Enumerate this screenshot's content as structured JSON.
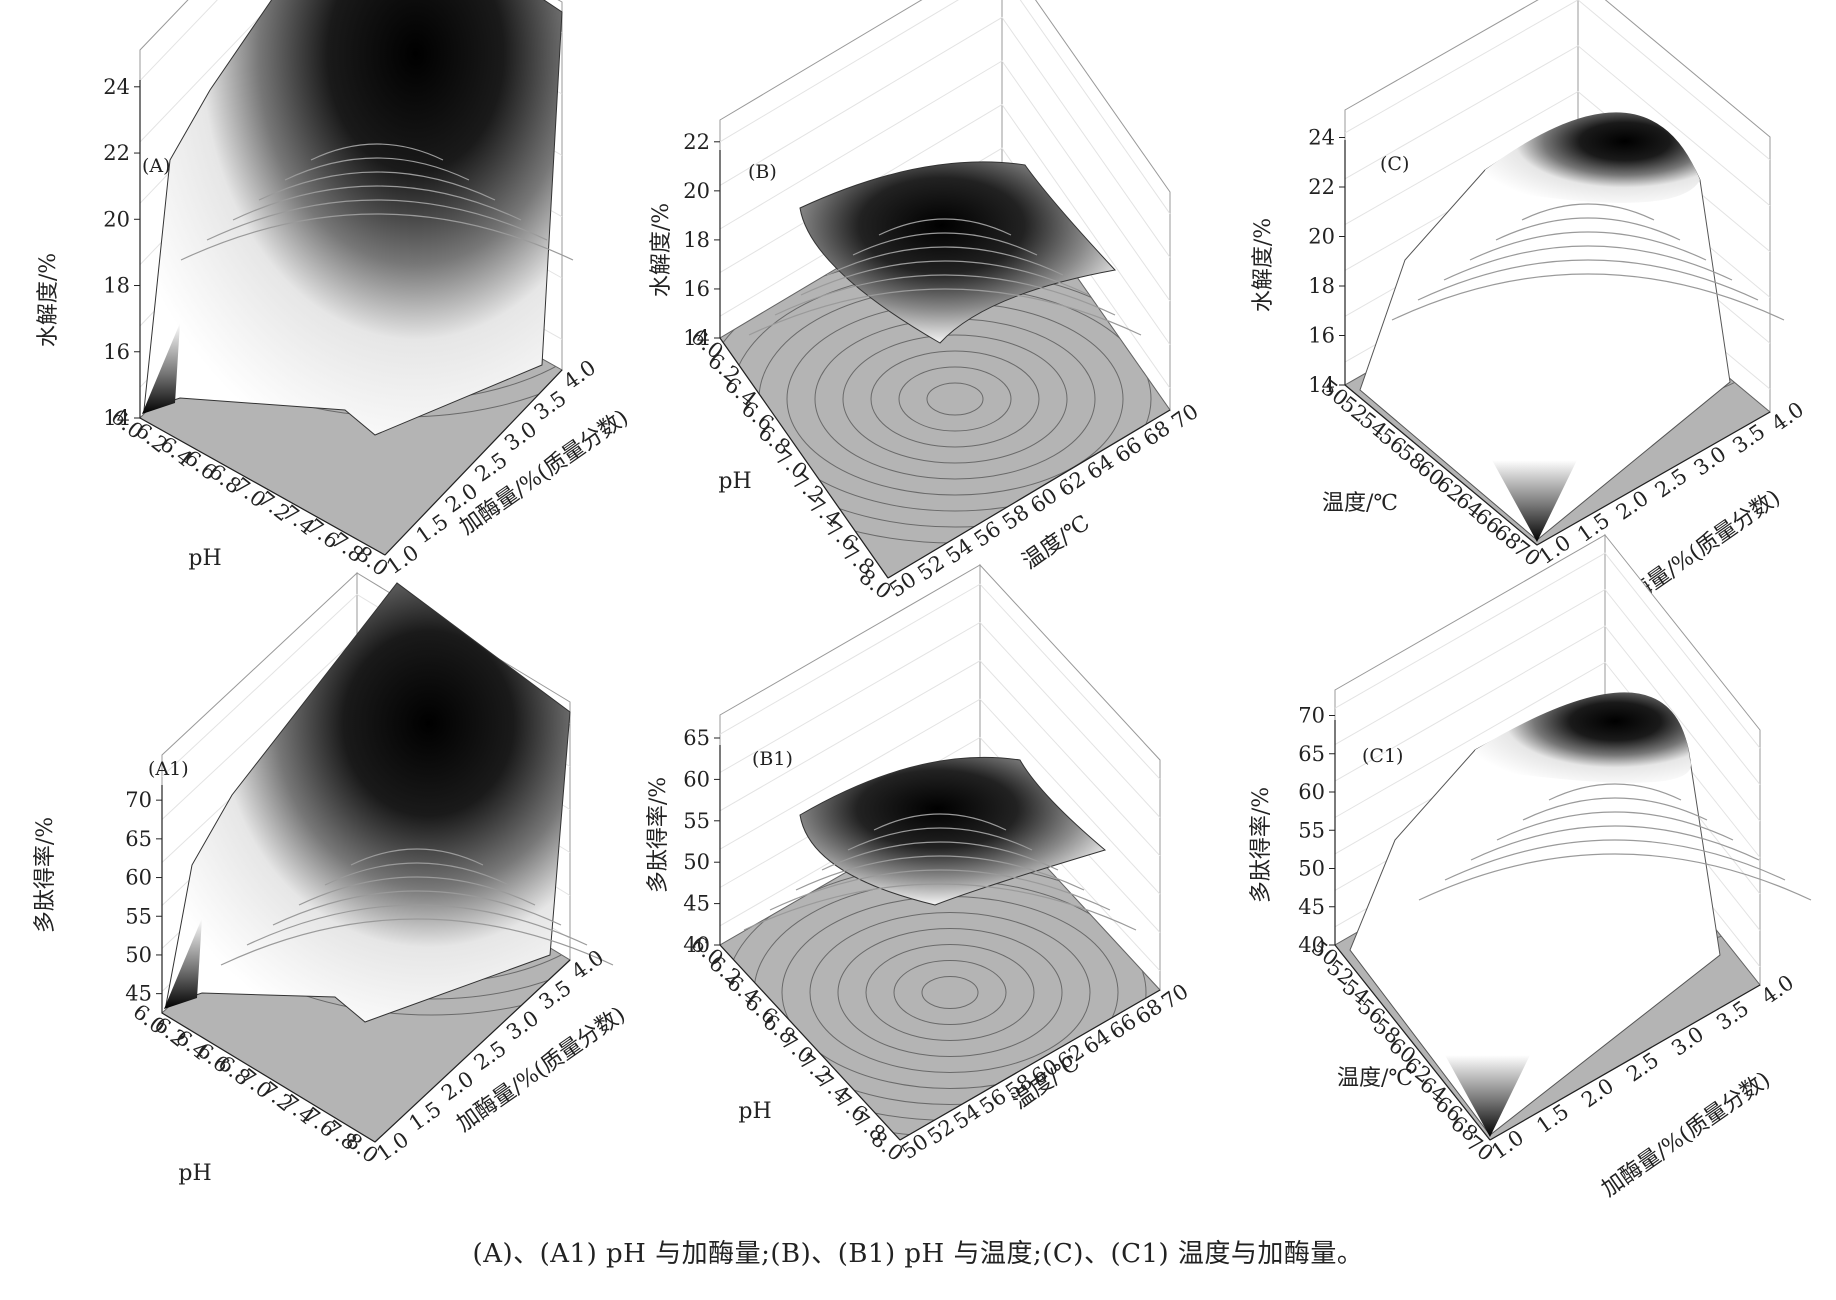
{
  "caption": "(A)、(A1) pH 与加酶量;(B)、(B1) pH 与温度;(C)、(C1) 温度与加酶量。",
  "chart_data": [
    {
      "type": "surface3d",
      "panel": "(A)",
      "x": {
        "label": "pH",
        "ticks": [
          "6.0",
          "6.2",
          "6.4",
          "6.6",
          "6.8",
          "7.0",
          "7.2",
          "7.4",
          "7.6",
          "7.8",
          "8.0"
        ],
        "range": [
          6.0,
          8.0
        ]
      },
      "y": {
        "label": "加酶量/%(质量分数)",
        "ticks": [
          "1.0",
          "1.5",
          "2.0",
          "2.5",
          "3.0",
          "3.5",
          "4.0"
        ],
        "range": [
          1.0,
          4.0
        ]
      },
      "z": {
        "label": "水解度/%",
        "ticks": [
          "14",
          "16",
          "18",
          "20",
          "22",
          "24"
        ],
        "range": [
          14,
          24
        ]
      },
      "peak": {
        "x": 6.6,
        "y": 4.0,
        "z": 24.5
      }
    },
    {
      "type": "surface3d",
      "panel": "(B)",
      "x": {
        "label": "pH",
        "ticks": [
          "6.0",
          "6.2",
          "6.4",
          "6.6",
          "6.8",
          "7.0",
          "7.2",
          "7.4",
          "7.6",
          "7.8",
          "8.0"
        ],
        "range": [
          6.0,
          8.0
        ]
      },
      "y": {
        "label": "温度/℃",
        "ticks": [
          "50",
          "52",
          "54",
          "56",
          "58",
          "60",
          "62",
          "64",
          "66",
          "68",
          "70"
        ],
        "range": [
          50,
          70
        ]
      },
      "z": {
        "label": "水解度/%",
        "ticks": [
          "14",
          "16",
          "18",
          "20",
          "22"
        ],
        "range": [
          14,
          22
        ]
      },
      "peak": {
        "x": 6.8,
        "y": 60,
        "z": 22
      }
    },
    {
      "type": "surface3d",
      "panel": "(C)",
      "x": {
        "label": "温度/℃",
        "ticks": [
          "50",
          "52",
          "54",
          "56",
          "58",
          "60",
          "62",
          "64",
          "66",
          "68",
          "70"
        ],
        "range": [
          50,
          70
        ]
      },
      "y": {
        "label": "加酶量/%(质量分数)",
        "ticks": [
          "1.0",
          "1.5",
          "2.0",
          "2.5",
          "3.0",
          "3.5",
          "4.0"
        ],
        "range": [
          1.0,
          4.0
        ]
      },
      "z": {
        "label": "水解度/%",
        "ticks": [
          "14",
          "16",
          "18",
          "20",
          "22",
          "24"
        ],
        "range": [
          14,
          24
        ]
      },
      "peak": {
        "x": 60,
        "y": 4.0,
        "z": 24.5
      }
    },
    {
      "type": "surface3d",
      "panel": "(A1)",
      "x": {
        "label": "pH",
        "ticks": [
          "6.0",
          "6.2",
          "6.4",
          "6.6",
          "6.8",
          "7.0",
          "7.2",
          "7.4",
          "7.6",
          "7.8",
          "8.0"
        ],
        "range": [
          6.0,
          8.0
        ]
      },
      "y": {
        "label": "加酶量/%(质量分数)",
        "ticks": [
          "1.0",
          "1.5",
          "2.0",
          "2.5",
          "3.0",
          "3.5",
          "4.0"
        ],
        "range": [
          1.0,
          4.0
        ]
      },
      "z": {
        "label": "多肽得率/%",
        "ticks": [
          "45",
          "50",
          "55",
          "60",
          "65",
          "70"
        ],
        "range": [
          42,
          70
        ]
      },
      "peak": {
        "x": 6.6,
        "y": 4.0,
        "z": 70
      }
    },
    {
      "type": "surface3d",
      "panel": "(B1)",
      "x": {
        "label": "pH",
        "ticks": [
          "6.0",
          "6.2",
          "6.4",
          "6.6",
          "6.8",
          "7.0",
          "7.2",
          "7.4",
          "7.6",
          "7.8",
          "8.0"
        ],
        "range": [
          6.0,
          8.0
        ]
      },
      "y": {
        "label": "温度/℃",
        "ticks": [
          "50",
          "52",
          "54",
          "56",
          "58",
          "60",
          "62",
          "64",
          "66",
          "68",
          "70"
        ],
        "range": [
          50,
          70
        ]
      },
      "z": {
        "label": "多肽得率/%",
        "ticks": [
          "40",
          "45",
          "50",
          "55",
          "60",
          "65"
        ],
        "range": [
          40,
          65
        ]
      },
      "peak": {
        "x": 6.8,
        "y": 60,
        "z": 63
      }
    },
    {
      "type": "surface3d",
      "panel": "(C1)",
      "x": {
        "label": "温度/℃",
        "ticks": [
          "50",
          "52",
          "54",
          "56",
          "58",
          "60",
          "62",
          "64",
          "66",
          "68",
          "70"
        ],
        "range": [
          50,
          70
        ]
      },
      "y": {
        "label": "加酶量/%(质量分数)",
        "ticks": [
          "1.0",
          "1.5",
          "2.0",
          "2.5",
          "3.0",
          "3.5",
          "4.0"
        ],
        "range": [
          1.0,
          4.0
        ]
      },
      "z": {
        "label": "多肽得率/%",
        "ticks": [
          "40",
          "45",
          "50",
          "55",
          "60",
          "65",
          "70"
        ],
        "range": [
          38,
          70
        ]
      },
      "peak": {
        "x": 60,
        "y": 4.0,
        "z": 70
      }
    }
  ]
}
